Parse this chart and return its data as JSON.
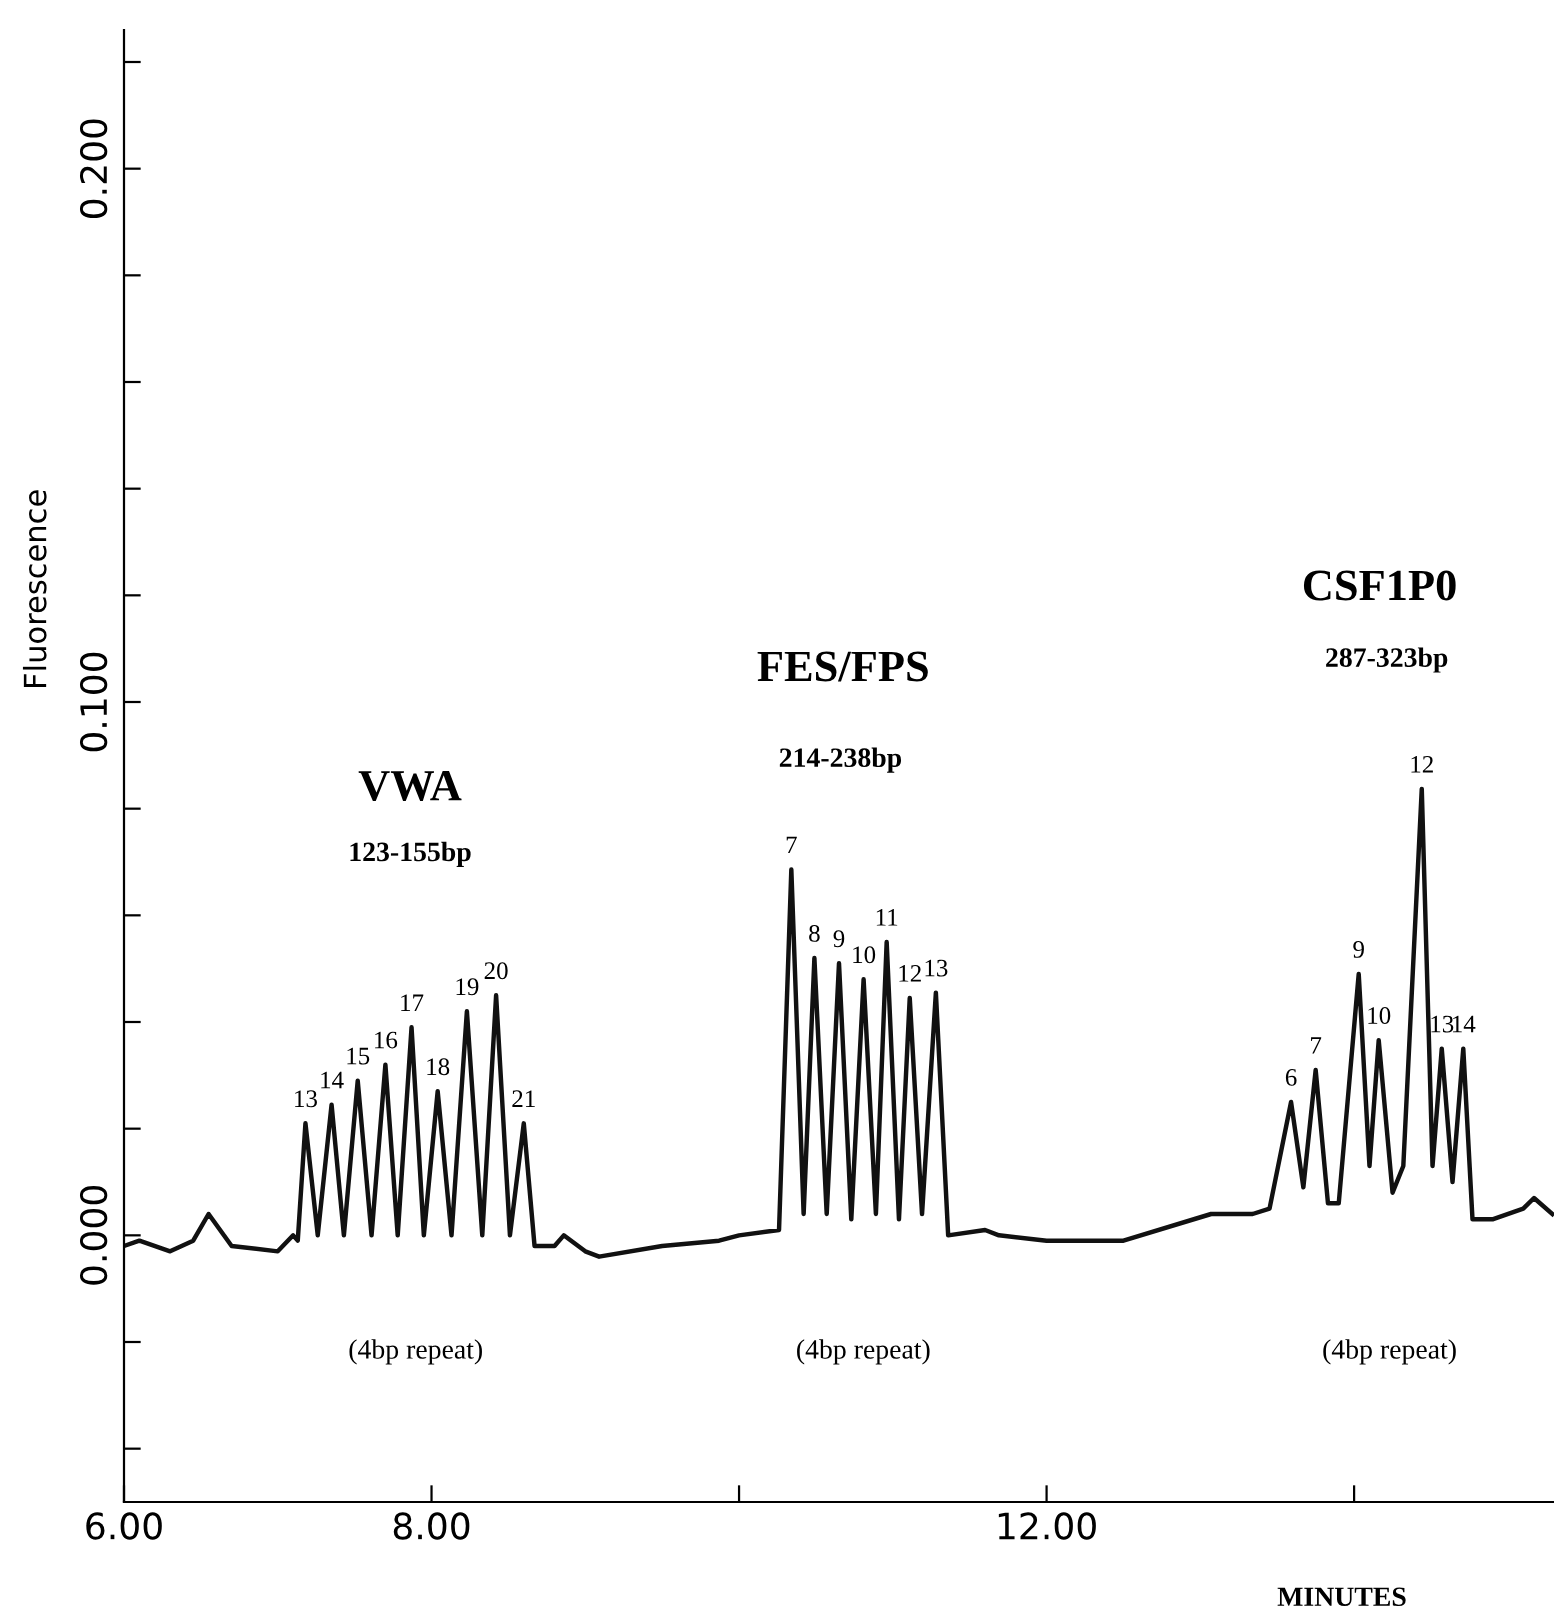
{
  "chart_data": {
    "type": "line",
    "xlabel": "MINUTES",
    "ylabel": "Fluorescence",
    "xlim": [
      6,
      15.3
    ],
    "ylim": [
      -0.05,
      0.226
    ],
    "xticks": [
      {
        "value": 6,
        "label": "6.00"
      },
      {
        "value": 8,
        "label": "8.00"
      },
      {
        "value": 10,
        "label": null
      },
      {
        "value": 12,
        "label": "12.00"
      },
      {
        "value": 14,
        "label": null
      }
    ],
    "yticks": [
      {
        "value": -0.04,
        "label": null
      },
      {
        "value": -0.02,
        "label": null
      },
      {
        "value": 0,
        "label": "0.000"
      },
      {
        "value": 0.02,
        "label": null
      },
      {
        "value": 0.04,
        "label": null
      },
      {
        "value": 0.06,
        "label": null
      },
      {
        "value": 0.08,
        "label": null
      },
      {
        "value": 0.1,
        "label": "0.100"
      },
      {
        "value": 0.12,
        "label": null
      },
      {
        "value": 0.14,
        "label": null
      },
      {
        "value": 0.16,
        "label": null
      },
      {
        "value": 0.18,
        "label": null
      },
      {
        "value": 0.2,
        "label": "0.200"
      },
      {
        "value": 0.22,
        "label": null
      }
    ],
    "grid": false,
    "legend": false,
    "marker": "none",
    "line_style": "solid",
    "series": [
      {
        "color": "#111111",
        "x": [
          6.0,
          6.1,
          6.3,
          6.45,
          6.55,
          6.7,
          7.0,
          7.1,
          7.13,
          7.18,
          7.26,
          7.35,
          7.43,
          7.52,
          7.61,
          7.7,
          7.78,
          7.87,
          7.95,
          8.04,
          8.13,
          8.23,
          8.33,
          8.42,
          8.51,
          8.6,
          8.67,
          8.8,
          8.86,
          9.0,
          9.09,
          9.5,
          9.87,
          10.0,
          10.26,
          10.34,
          10.42,
          10.49,
          10.57,
          10.65,
          10.73,
          10.81,
          10.89,
          10.96,
          11.04,
          11.11,
          11.19,
          11.28,
          11.36,
          11.6,
          11.69,
          12.0,
          12.5,
          13.07,
          13.34,
          13.45,
          13.59,
          13.67,
          13.75,
          13.83,
          13.9,
          14.03,
          14.1,
          14.16,
          14.25,
          14.32,
          14.44,
          14.51,
          14.57,
          14.64,
          14.71,
          14.77,
          14.9,
          15.1,
          15.17,
          15.29
        ],
        "values": [
          -0.002,
          -0.001,
          -0.003,
          -0.001,
          0.004,
          -0.002,
          -0.003,
          0.0,
          -0.001,
          0.021,
          0.0,
          0.0245,
          0.0,
          0.029,
          0.0,
          0.032,
          0.0,
          0.039,
          0.0,
          0.027,
          0.0,
          0.042,
          0.0,
          0.045,
          0.0,
          0.021,
          -0.002,
          -0.002,
          0.0,
          -0.003,
          -0.004,
          -0.002,
          -0.001,
          0.0,
          0.001,
          0.0686,
          0.004,
          0.052,
          0.004,
          0.051,
          0.003,
          0.048,
          0.004,
          0.055,
          0.003,
          0.0445,
          0.004,
          0.0455,
          0.0,
          0.001,
          0.0,
          -0.001,
          -0.001,
          0.004,
          0.004,
          0.005,
          0.025,
          0.009,
          0.031,
          0.006,
          0.006,
          0.049,
          0.013,
          0.0366,
          0.008,
          0.013,
          0.0837,
          0.013,
          0.035,
          0.01,
          0.035,
          0.003,
          0.003,
          0.005,
          0.007,
          0.004
        ]
      }
    ],
    "annotations": [
      {
        "text": "13",
        "x": 7.18,
        "y": 0.021
      },
      {
        "text": "14",
        "x": 7.35,
        "y": 0.0245
      },
      {
        "text": "15",
        "x": 7.52,
        "y": 0.029
      },
      {
        "text": "16",
        "x": 7.7,
        "y": 0.032
      },
      {
        "text": "17",
        "x": 7.87,
        "y": 0.039
      },
      {
        "text": "18",
        "x": 8.04,
        "y": 0.027
      },
      {
        "text": "19",
        "x": 8.23,
        "y": 0.042
      },
      {
        "text": "20",
        "x": 8.42,
        "y": 0.045
      },
      {
        "text": "21",
        "x": 8.6,
        "y": 0.021
      },
      {
        "text": "7",
        "x": 10.34,
        "y": 0.0686
      },
      {
        "text": "8",
        "x": 10.49,
        "y": 0.052
      },
      {
        "text": "9",
        "x": 10.65,
        "y": 0.051
      },
      {
        "text": "10",
        "x": 10.81,
        "y": 0.048
      },
      {
        "text": "11",
        "x": 10.96,
        "y": 0.055
      },
      {
        "text": "12",
        "x": 11.11,
        "y": 0.0445
      },
      {
        "text": "13",
        "x": 11.28,
        "y": 0.0455
      },
      {
        "text": "6",
        "x": 13.59,
        "y": 0.025
      },
      {
        "text": "7",
        "x": 13.75,
        "y": 0.031
      },
      {
        "text": "9",
        "x": 14.03,
        "y": 0.049
      },
      {
        "text": "10",
        "x": 14.16,
        "y": 0.0366
      },
      {
        "text": "12",
        "x": 14.44,
        "y": 0.0837
      },
      {
        "text": "13",
        "x": 14.57,
        "y": 0.035
      },
      {
        "text": "14",
        "x": 14.71,
        "y": 0.035
      },
      "VWA",
      "123-155bp",
      "FES/FPS",
      "214-238bp",
      "CSF1P0",
      "287-323bp",
      "(4bp repeat)",
      "(4bp repeat)",
      "(4bp repeat)"
    ]
  }
}
